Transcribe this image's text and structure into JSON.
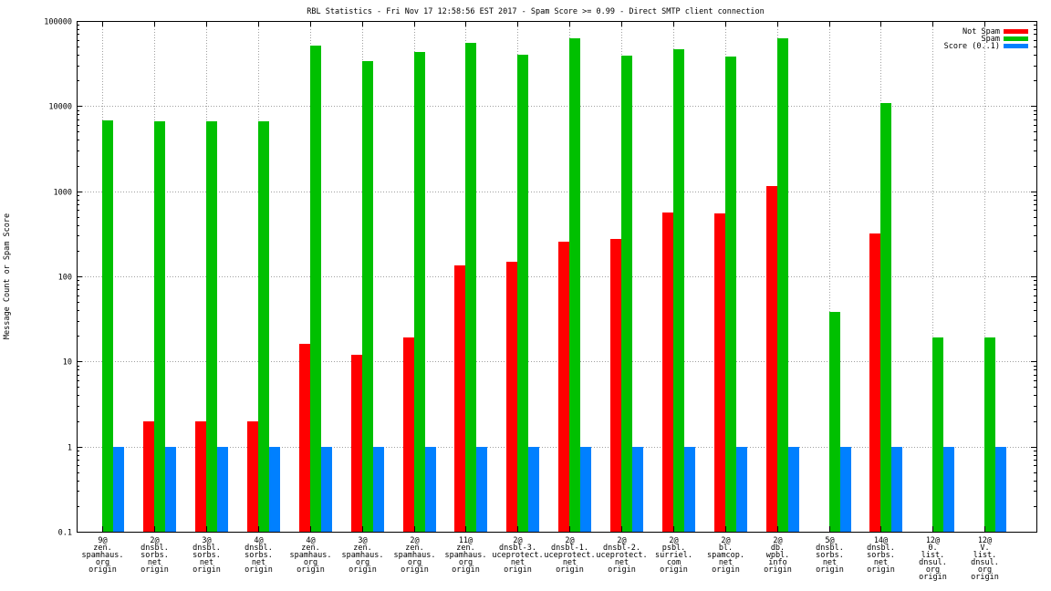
{
  "chart_data": {
    "type": "bar",
    "title": "RBL Statistics - Fri Nov 17 12:58:56 EST 2017 - Spam Score >= 0.99 - Direct SMTP client connection",
    "xlabel": "",
    "ylabel": "Message Count or Spam Score",
    "yscale": "log",
    "ylim": [
      0.1,
      100000
    ],
    "yticks": [
      "0.1",
      "1",
      "10",
      "100",
      "1000",
      "10000",
      "100000"
    ],
    "grid": true,
    "legend": "top-right",
    "categories": [
      [
        "9@",
        "zen.",
        "spamhaus.",
        "org",
        "origin"
      ],
      [
        "2@",
        "dnsbl.",
        "sorbs.",
        "net",
        "origin"
      ],
      [
        "3@",
        "dnsbl.",
        "sorbs.",
        "net",
        "origin"
      ],
      [
        "4@",
        "dnsbl.",
        "sorbs.",
        "net",
        "origin"
      ],
      [
        "4@",
        "zen.",
        "spamhaus.",
        "org",
        "origin"
      ],
      [
        "3@",
        "zen.",
        "spamhaus.",
        "org",
        "origin"
      ],
      [
        "2@",
        "zen.",
        "spamhaus.",
        "org",
        "origin"
      ],
      [
        "11@",
        "zen.",
        "spamhaus.",
        "org",
        "origin"
      ],
      [
        "2@",
        "dnsbl-3.",
        "uceprotect.",
        "net",
        "origin"
      ],
      [
        "2@",
        "dnsbl-1.",
        "uceprotect.",
        "net",
        "origin"
      ],
      [
        "2@",
        "dnsbl-2.",
        "uceprotect.",
        "net",
        "origin"
      ],
      [
        "2@",
        "psbl.",
        "surriel.",
        "com",
        "origin"
      ],
      [
        "2@",
        "bl.",
        "spamcop.",
        "net",
        "origin"
      ],
      [
        "2@",
        "db.",
        "wpbl.",
        "info",
        "origin"
      ],
      [
        "5@",
        "dnsbl.",
        "sorbs.",
        "net",
        "origin"
      ],
      [
        "14@",
        "dnsbl.",
        "sorbs.",
        "net",
        "origin"
      ],
      [
        "12@",
        "0.",
        "list.",
        "dnsul.",
        "org",
        "origin"
      ],
      [
        "12@",
        "V.",
        "list.",
        "dnsul.",
        "org",
        "origin"
      ]
    ],
    "series": [
      {
        "name": "Not Spam",
        "color": "#ff0000",
        "values": [
          0,
          2,
          2,
          2,
          16,
          12,
          19,
          136,
          150,
          258,
          278,
          568,
          554,
          1163,
          0,
          322,
          0,
          0
        ]
      },
      {
        "name": "Spam",
        "color": "#00c000",
        "values": [
          6800,
          6600,
          6600,
          6600,
          52000,
          34000,
          43000,
          55000,
          40000,
          63000,
          39000,
          46000,
          38000,
          62000,
          38,
          10800,
          19,
          19
        ]
      },
      {
        "name": "Score (0..1)",
        "color": "#0080ff",
        "values": [
          1,
          1,
          1,
          1,
          1,
          1,
          1,
          1,
          1,
          1,
          1,
          1,
          1,
          1,
          1,
          1,
          1,
          1
        ]
      }
    ]
  }
}
